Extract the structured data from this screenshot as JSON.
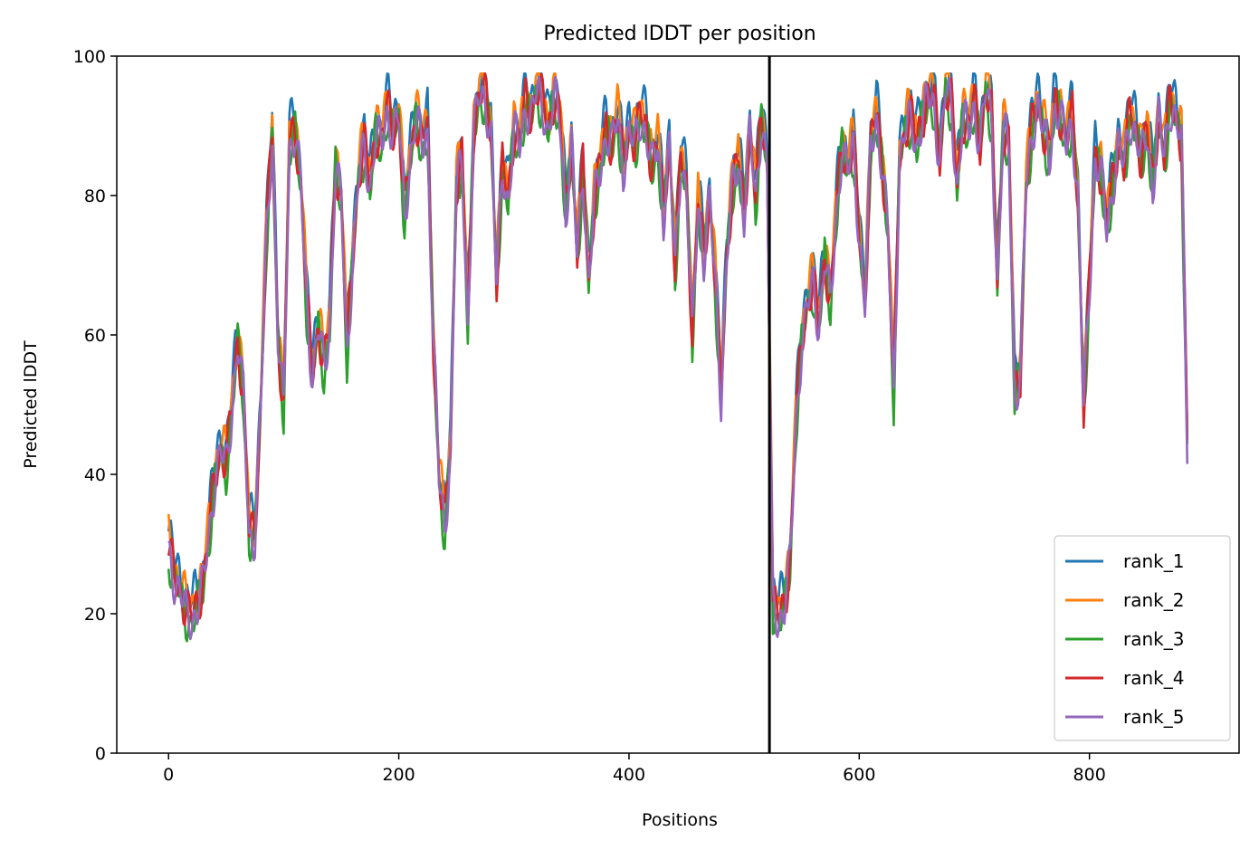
{
  "chart_data": {
    "type": "line",
    "title": "Predicted lDDT per position",
    "xlabel": "Positions",
    "ylabel": "Predicted lDDT",
    "xlim": [
      -45,
      930
    ],
    "ylim": [
      0,
      100
    ],
    "xticks": [
      0,
      200,
      400,
      600,
      800
    ],
    "yticks": [
      0,
      20,
      40,
      60,
      80,
      100
    ],
    "xtick_labels": [
      "0",
      "200",
      "400",
      "600",
      "800"
    ],
    "ytick_labels": [
      "0",
      "20",
      "40",
      "60",
      "80",
      "100"
    ],
    "grid": false,
    "legend_position": "lower-right",
    "chain_break_x": 522,
    "chain_break_color": "#000000",
    "x_range": [
      0,
      885
    ],
    "profile": [
      [
        0,
        30
      ],
      [
        5,
        26
      ],
      [
        10,
        24
      ],
      [
        15,
        21
      ],
      [
        20,
        20
      ],
      [
        25,
        22
      ],
      [
        30,
        25
      ],
      [
        35,
        32
      ],
      [
        40,
        40
      ],
      [
        45,
        44
      ],
      [
        50,
        42
      ],
      [
        55,
        50
      ],
      [
        60,
        60
      ],
      [
        65,
        52
      ],
      [
        70,
        32
      ],
      [
        75,
        32
      ],
      [
        80,
        50
      ],
      [
        85,
        75
      ],
      [
        90,
        90
      ],
      [
        95,
        60
      ],
      [
        100,
        50
      ],
      [
        105,
        88
      ],
      [
        110,
        90
      ],
      [
        115,
        82
      ],
      [
        120,
        65
      ],
      [
        125,
        55
      ],
      [
        130,
        62
      ],
      [
        135,
        56
      ],
      [
        140,
        62
      ],
      [
        145,
        85
      ],
      [
        150,
        80
      ],
      [
        155,
        58
      ],
      [
        160,
        72
      ],
      [
        165,
        83
      ],
      [
        170,
        88
      ],
      [
        175,
        82
      ],
      [
        180,
        90
      ],
      [
        185,
        88
      ],
      [
        190,
        93
      ],
      [
        195,
        90
      ],
      [
        200,
        92
      ],
      [
        205,
        78
      ],
      [
        210,
        86
      ],
      [
        215,
        92
      ],
      [
        220,
        88
      ],
      [
        225,
        90
      ],
      [
        230,
        60
      ],
      [
        235,
        40
      ],
      [
        240,
        33
      ],
      [
        245,
        45
      ],
      [
        250,
        82
      ],
      [
        255,
        86
      ],
      [
        260,
        62
      ],
      [
        265,
        90
      ],
      [
        270,
        95
      ],
      [
        275,
        95
      ],
      [
        280,
        90
      ],
      [
        285,
        68
      ],
      [
        290,
        85
      ],
      [
        295,
        80
      ],
      [
        300,
        90
      ],
      [
        305,
        88
      ],
      [
        310,
        94
      ],
      [
        315,
        92
      ],
      [
        320,
        96
      ],
      [
        325,
        94
      ],
      [
        330,
        90
      ],
      [
        335,
        95
      ],
      [
        340,
        92
      ],
      [
        345,
        78
      ],
      [
        350,
        88
      ],
      [
        355,
        72
      ],
      [
        360,
        85
      ],
      [
        365,
        68
      ],
      [
        370,
        80
      ],
      [
        375,
        85
      ],
      [
        380,
        90
      ],
      [
        385,
        88
      ],
      [
        390,
        92
      ],
      [
        395,
        85
      ],
      [
        400,
        90
      ],
      [
        405,
        88
      ],
      [
        410,
        92
      ],
      [
        415,
        90
      ],
      [
        420,
        85
      ],
      [
        425,
        88
      ],
      [
        430,
        78
      ],
      [
        435,
        88
      ],
      [
        440,
        70
      ],
      [
        445,
        86
      ],
      [
        450,
        82
      ],
      [
        455,
        60
      ],
      [
        460,
        80
      ],
      [
        465,
        72
      ],
      [
        470,
        80
      ],
      [
        475,
        68
      ],
      [
        480,
        52
      ],
      [
        485,
        72
      ],
      [
        490,
        82
      ],
      [
        495,
        86
      ],
      [
        500,
        78
      ],
      [
        505,
        90
      ],
      [
        510,
        80
      ],
      [
        515,
        92
      ],
      [
        520,
        85
      ],
      [
        525,
        22
      ],
      [
        530,
        20
      ],
      [
        535,
        22
      ],
      [
        540,
        28
      ],
      [
        545,
        48
      ],
      [
        550,
        60
      ],
      [
        555,
        65
      ],
      [
        560,
        68
      ],
      [
        565,
        62
      ],
      [
        570,
        72
      ],
      [
        575,
        65
      ],
      [
        580,
        78
      ],
      [
        585,
        88
      ],
      [
        590,
        84
      ],
      [
        595,
        88
      ],
      [
        600,
        75
      ],
      [
        605,
        65
      ],
      [
        610,
        88
      ],
      [
        615,
        92
      ],
      [
        620,
        85
      ],
      [
        625,
        75
      ],
      [
        630,
        52
      ],
      [
        635,
        86
      ],
      [
        640,
        90
      ],
      [
        645,
        92
      ],
      [
        650,
        88
      ],
      [
        655,
        92
      ],
      [
        660,
        95
      ],
      [
        665,
        94
      ],
      [
        670,
        86
      ],
      [
        675,
        96
      ],
      [
        680,
        94
      ],
      [
        685,
        82
      ],
      [
        690,
        92
      ],
      [
        695,
        90
      ],
      [
        700,
        94
      ],
      [
        705,
        88
      ],
      [
        710,
        96
      ],
      [
        715,
        92
      ],
      [
        720,
        68
      ],
      [
        725,
        90
      ],
      [
        730,
        88
      ],
      [
        735,
        52
      ],
      [
        740,
        55
      ],
      [
        745,
        82
      ],
      [
        750,
        90
      ],
      [
        755,
        94
      ],
      [
        760,
        90
      ],
      [
        765,
        86
      ],
      [
        770,
        94
      ],
      [
        775,
        92
      ],
      [
        780,
        88
      ],
      [
        785,
        92
      ],
      [
        790,
        80
      ],
      [
        795,
        50
      ],
      [
        800,
        68
      ],
      [
        805,
        86
      ],
      [
        810,
        84
      ],
      [
        815,
        76
      ],
      [
        820,
        82
      ],
      [
        825,
        88
      ],
      [
        830,
        85
      ],
      [
        835,
        92
      ],
      [
        840,
        90
      ],
      [
        845,
        86
      ],
      [
        850,
        90
      ],
      [
        855,
        82
      ],
      [
        860,
        92
      ],
      [
        865,
        86
      ],
      [
        870,
        94
      ],
      [
        875,
        92
      ],
      [
        880,
        88
      ],
      [
        885,
        45
      ]
    ],
    "series": [
      {
        "name": "rank_1",
        "color": "#1f77b4",
        "offset": 1.8
      },
      {
        "name": "rank_2",
        "color": "#ff7f0e",
        "offset": 1.0
      },
      {
        "name": "rank_3",
        "color": "#2ca02c",
        "offset": -1.5
      },
      {
        "name": "rank_4",
        "color": "#d62728",
        "offset": -0.5
      },
      {
        "name": "rank_5",
        "color": "#9467bd",
        "offset": -1.0
      }
    ]
  }
}
